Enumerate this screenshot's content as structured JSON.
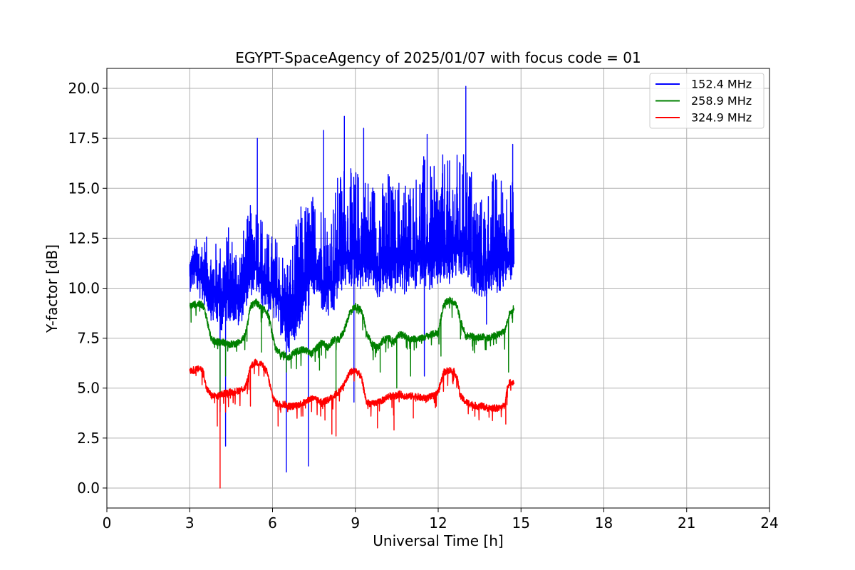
{
  "chart_data": {
    "type": "line",
    "title": "EGYPT-SpaceAgency of 2025/01/07 with focus code = 01",
    "xlabel": "Universal Time [h]",
    "ylabel": "Y-factor [dB]",
    "xlim": [
      0,
      24
    ],
    "ylim": [
      -1,
      21
    ],
    "xticks": [
      0,
      3,
      6,
      9,
      12,
      15,
      18,
      21,
      24
    ],
    "yticks": [
      0.0,
      2.5,
      5.0,
      7.5,
      10.0,
      12.5,
      15.0,
      17.5,
      20.0
    ],
    "ytick_labels": [
      "0.0",
      "2.5",
      "5.0",
      "7.5",
      "10.0",
      "12.5",
      "15.0",
      "17.5",
      "20.0"
    ],
    "grid": true,
    "legend_position": "top-right",
    "series": [
      {
        "name": "152.4 MHz",
        "color": "#0000ff",
        "x": [
          3.0,
          3.2,
          3.4,
          3.6,
          3.8,
          4.0,
          4.2,
          4.4,
          4.6,
          4.8,
          5.0,
          5.2,
          5.4,
          5.6,
          5.8,
          6.0,
          6.2,
          6.4,
          6.6,
          6.8,
          7.0,
          7.2,
          7.4,
          7.6,
          7.8,
          8.0,
          8.2,
          8.4,
          8.6,
          8.8,
          9.0,
          9.2,
          9.4,
          9.6,
          9.8,
          10.0,
          10.2,
          10.4,
          10.6,
          10.8,
          11.0,
          11.2,
          11.4,
          11.6,
          11.8,
          12.0,
          12.2,
          12.4,
          12.6,
          12.8,
          13.0,
          13.2,
          13.4,
          13.6,
          13.8,
          14.0,
          14.2,
          14.4,
          14.6,
          14.75
        ],
        "y": [
          10.8,
          11.2,
          10.5,
          10.4,
          9.9,
          9.8,
          9.6,
          10.0,
          9.7,
          9.5,
          10.2,
          10.8,
          11.2,
          10.6,
          10.3,
          10.0,
          9.6,
          8.8,
          8.0,
          8.8,
          9.6,
          10.2,
          10.8,
          11.0,
          10.4,
          10.0,
          10.3,
          11.4,
          11.8,
          11.6,
          11.9,
          11.5,
          11.8,
          11.6,
          11.0,
          11.3,
          11.5,
          11.2,
          11.6,
          11.4,
          11.9,
          11.6,
          12.1,
          11.7,
          11.4,
          11.8,
          12.0,
          11.8,
          12.3,
          12.1,
          12.4,
          11.6,
          11.3,
          11.0,
          11.1,
          11.6,
          11.4,
          11.8,
          11.6,
          12.2
        ],
        "spread_up": [
          1.0,
          1.2,
          2.6,
          2.2,
          2.4,
          2.6,
          2.8,
          3.2,
          3.0,
          3.1,
          3.0,
          3.4,
          3.6,
          3.4,
          2.6,
          2.8,
          3.0,
          3.2,
          4.0,
          4.2,
          4.6,
          4.4,
          4.0,
          3.8,
          4.4,
          4.0,
          4.4,
          4.6,
          4.8,
          4.4,
          4.2,
          4.6,
          4.2,
          4.0,
          4.6,
          4.2,
          4.6,
          4.0,
          4.2,
          4.4,
          3.8,
          4.4,
          4.8,
          4.8,
          4.6,
          4.6,
          4.8,
          4.6,
          4.6,
          4.6,
          4.6,
          4.8,
          3.8,
          3.6,
          4.2,
          4.4,
          4.6,
          3.8,
          4.2,
          3.0
        ],
        "spread_down": [
          1.0,
          1.1,
          1.2,
          1.4,
          1.6,
          1.7,
          1.8,
          1.6,
          1.4,
          1.6,
          1.3,
          1.2,
          1.4,
          1.5,
          1.4,
          1.5,
          1.6,
          1.6,
          1.2,
          1.4,
          1.6,
          1.6,
          1.4,
          1.4,
          1.6,
          1.6,
          1.8,
          1.8,
          1.8,
          1.6,
          1.8,
          1.6,
          1.8,
          1.6,
          1.6,
          1.6,
          1.8,
          1.6,
          1.6,
          1.8,
          1.8,
          1.8,
          1.8,
          1.8,
          1.6,
          1.8,
          1.8,
          1.8,
          1.8,
          1.8,
          1.8,
          1.8,
          1.6,
          1.6,
          1.4,
          1.8,
          1.8,
          1.6,
          1.4,
          1.2
        ],
        "dips": [
          [
            4.1,
            3.8
          ],
          [
            4.3,
            2.1
          ],
          [
            6.5,
            0.8
          ],
          [
            7.3,
            1.1
          ],
          [
            8.95,
            4.3
          ],
          [
            11.5,
            5.6
          ],
          [
            13.75,
            8.2
          ]
        ],
        "spikes": [
          [
            5.45,
            17.5
          ],
          [
            7.85,
            17.9
          ],
          [
            8.6,
            18.6
          ],
          [
            9.3,
            18.0
          ],
          [
            11.6,
            17.7
          ],
          [
            13.0,
            20.1
          ],
          [
            14.7,
            17.2
          ]
        ]
      },
      {
        "name": "258.9 MHz",
        "color": "#008000",
        "x": [
          3.0,
          3.2,
          3.4,
          3.5,
          3.6,
          3.7,
          3.8,
          4.0,
          4.2,
          4.4,
          4.6,
          4.8,
          5.0,
          5.1,
          5.2,
          5.4,
          5.6,
          5.8,
          5.9,
          6.0,
          6.1,
          6.2,
          6.4,
          6.6,
          6.8,
          7.0,
          7.2,
          7.4,
          7.6,
          7.8,
          8.0,
          8.2,
          8.4,
          8.6,
          8.8,
          9.0,
          9.2,
          9.3,
          9.4,
          9.6,
          9.8,
          10.0,
          10.2,
          10.4,
          10.6,
          10.8,
          11.0,
          11.2,
          11.4,
          11.6,
          11.8,
          12.0,
          12.2,
          12.4,
          12.6,
          12.7,
          12.8,
          13.0,
          13.2,
          13.4,
          13.6,
          13.8,
          14.0,
          14.2,
          14.4,
          14.5,
          14.6,
          14.75
        ],
        "y": [
          9.1,
          9.2,
          9.2,
          9.1,
          8.6,
          7.9,
          7.4,
          7.3,
          7.3,
          7.2,
          7.2,
          7.3,
          7.6,
          8.2,
          9.1,
          9.3,
          9.0,
          8.8,
          8.4,
          7.6,
          7.0,
          6.8,
          6.7,
          6.5,
          6.8,
          6.9,
          6.9,
          6.7,
          7.0,
          7.3,
          7.0,
          7.4,
          7.4,
          7.9,
          8.8,
          9.1,
          8.9,
          8.5,
          7.8,
          7.2,
          7.0,
          7.4,
          7.5,
          7.3,
          7.7,
          7.6,
          7.4,
          7.5,
          7.5,
          7.6,
          7.7,
          7.8,
          9.2,
          9.4,
          9.3,
          9.0,
          8.4,
          7.6,
          7.6,
          7.5,
          7.6,
          7.5,
          7.6,
          7.7,
          7.8,
          8.3,
          8.8,
          9.0
        ],
        "dips": [
          [
            3.05,
            8.3
          ],
          [
            4.1,
            4.1
          ],
          [
            4.3,
            5.6
          ],
          [
            5.6,
            6.8
          ],
          [
            6.5,
            5.8
          ],
          [
            7.7,
            5.9
          ],
          [
            8.3,
            4.4
          ],
          [
            9.9,
            5.8
          ],
          [
            10.5,
            5.0
          ],
          [
            11.0,
            5.6
          ],
          [
            12.1,
            6.6
          ],
          [
            14.55,
            5.8
          ]
        ]
      },
      {
        "name": "324.9 MHz",
        "color": "#ff0000",
        "x": [
          3.0,
          3.2,
          3.4,
          3.5,
          3.6,
          3.8,
          4.0,
          4.2,
          4.4,
          4.6,
          4.8,
          5.0,
          5.1,
          5.2,
          5.4,
          5.6,
          5.8,
          5.9,
          6.0,
          6.1,
          6.2,
          6.4,
          6.6,
          6.8,
          7.0,
          7.2,
          7.4,
          7.6,
          7.8,
          8.0,
          8.2,
          8.4,
          8.6,
          8.8,
          9.0,
          9.2,
          9.3,
          9.4,
          9.6,
          9.8,
          10.0,
          10.2,
          10.4,
          10.6,
          10.8,
          11.0,
          11.2,
          11.4,
          11.6,
          11.8,
          12.0,
          12.2,
          12.4,
          12.6,
          12.7,
          12.8,
          13.0,
          13.2,
          13.4,
          13.6,
          13.8,
          14.0,
          14.2,
          14.4,
          14.5,
          14.6,
          14.75
        ],
        "y": [
          5.9,
          5.9,
          6.0,
          5.8,
          5.0,
          4.6,
          4.6,
          4.7,
          4.8,
          4.8,
          4.9,
          5.0,
          5.4,
          6.1,
          6.3,
          6.2,
          5.8,
          5.2,
          4.6,
          4.3,
          4.2,
          4.2,
          4.1,
          4.1,
          4.2,
          4.3,
          4.5,
          4.4,
          4.3,
          4.4,
          4.6,
          4.8,
          5.2,
          5.8,
          5.9,
          5.6,
          5.0,
          4.3,
          4.2,
          4.3,
          4.4,
          4.6,
          4.6,
          4.7,
          4.6,
          4.6,
          4.6,
          4.5,
          4.5,
          4.6,
          4.8,
          5.8,
          5.9,
          5.8,
          5.4,
          4.6,
          4.3,
          4.2,
          4.1,
          4.1,
          4.0,
          4.0,
          4.0,
          4.1,
          5.0,
          5.3,
          5.3
        ],
        "dips": [
          [
            4.0,
            3.1
          ],
          [
            4.1,
            0.0
          ],
          [
            4.3,
            3.8
          ],
          [
            5.2,
            4.1
          ],
          [
            6.2,
            3.1
          ],
          [
            7.1,
            3.6
          ],
          [
            7.9,
            3.4
          ],
          [
            8.15,
            2.7
          ],
          [
            8.3,
            2.6
          ],
          [
            9.8,
            3.0
          ],
          [
            10.4,
            2.9
          ],
          [
            11.1,
            3.5
          ],
          [
            14.45,
            3.2
          ]
        ]
      }
    ]
  }
}
